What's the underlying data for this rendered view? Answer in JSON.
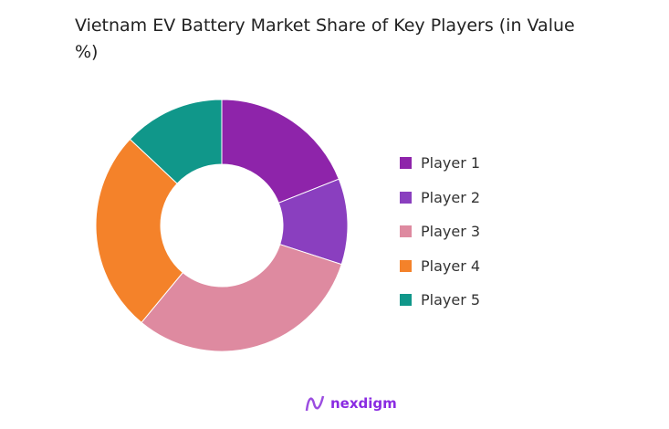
{
  "chart_data": {
    "type": "pie",
    "donut": true,
    "title": "Vietnam EV Battery Market Share of Key Players (in Value %)",
    "categories": [
      "Player 1",
      "Player 2",
      "Player 3",
      "Player 4",
      "Player 5"
    ],
    "values": [
      19,
      11,
      31,
      26,
      13
    ],
    "colors": [
      "#8e24aa",
      "#8a3fbf",
      "#de8aa0",
      "#f4822a",
      "#10978a"
    ],
    "legend": "right"
  },
  "logo": {
    "text": "nexdigm",
    "color": "#8a2be2"
  }
}
